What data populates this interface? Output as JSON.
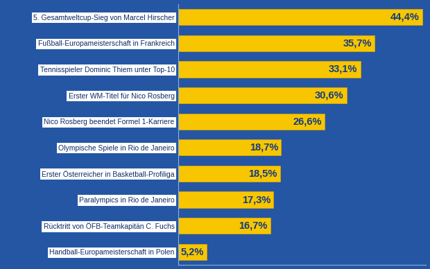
{
  "chart_data": {
    "type": "bar",
    "orientation": "horizontal",
    "categories": [
      "5. Gesamtweltcup-Sieg von Marcel Hirscher",
      "Fußball-Europameisterschaft in Frankreich",
      "Tennisspieler Dominic Thiem unter Top-10",
      "Erster WM-Titel für Nico Rosberg",
      "Nico Rosberg beendet Formel 1-Karriere",
      "Olympische Spiele in Rio de Janeiro",
      "Erster Österreicher in Basketball-Profiliga",
      "Paralympics in Rio de Janeiro",
      "Rücktritt von ÖFB-Teamkapitän C. Fuchs",
      "Handball-Europameisterschaft in Polen"
    ],
    "values": [
      44.4,
      35.7,
      33.1,
      30.6,
      26.6,
      18.7,
      18.5,
      17.3,
      16.7,
      5.2
    ],
    "value_labels": [
      "44,4%",
      "35,7%",
      "33,1%",
      "30,6%",
      "26,6%",
      "18,7%",
      "18,5%",
      "17,3%",
      "16,7%",
      "5,2%"
    ],
    "color": "#f7c600",
    "xlim": [
      0,
      45
    ],
    "data_labels": true,
    "tick_labels": "y",
    "grid": false
  }
}
